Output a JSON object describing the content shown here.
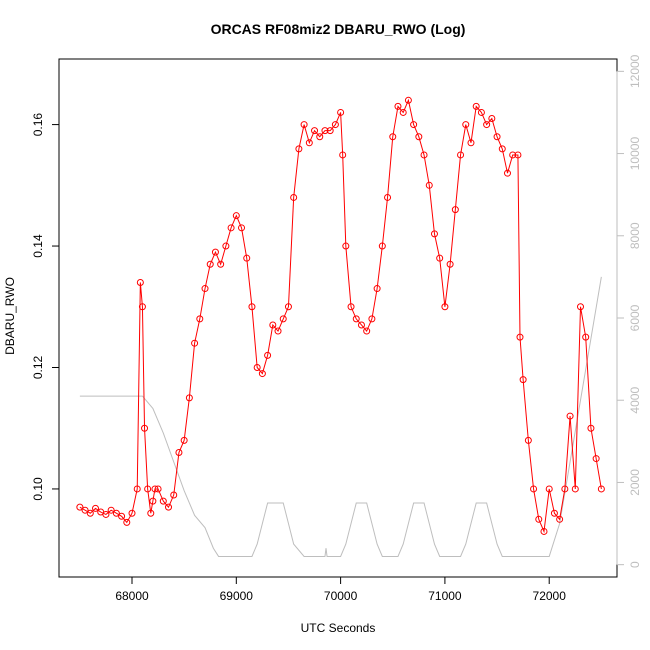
{
  "chart_data": {
    "type": "line",
    "title": "ORCAS RF08miz2 DBARU_RWO (Log)",
    "xlabel": "UTC Seconds",
    "ylabel": "DBARU_RWO",
    "xlim": [
      67300,
      72650
    ],
    "ylim": [
      0.0855,
      0.1708
    ],
    "y2lim": [
      -300,
      12300
    ],
    "x_ticks": [
      68000,
      69000,
      70000,
      71000,
      72000
    ],
    "y_ticks": [
      0.1,
      0.12,
      0.14,
      0.16
    ],
    "y2_ticks": [
      0,
      2000,
      4000,
      6000,
      8000,
      10000,
      12000
    ],
    "grid": false,
    "colors": {
      "primary": "#ff0000",
      "secondary": "#bebebe",
      "axis": "#000000"
    },
    "series": [
      {
        "role": "DBARU_RWO (left axis, red points with connecting line)",
        "x": [
          67500,
          67550,
          67600,
          67650,
          67700,
          67750,
          67800,
          67850,
          67900,
          67950,
          68000,
          68050,
          68080,
          68100,
          68120,
          68150,
          68180,
          68200,
          68220,
          68250,
          68300,
          68350,
          68400,
          68450,
          68500,
          68550,
          68600,
          68650,
          68700,
          68750,
          68800,
          68850,
          68900,
          68950,
          69000,
          69050,
          69100,
          69150,
          69200,
          69250,
          69300,
          69350,
          69400,
          69450,
          69500,
          69550,
          69600,
          69650,
          69700,
          69750,
          69800,
          69850,
          69900,
          69950,
          70000,
          70020,
          70050,
          70100,
          70150,
          70200,
          70250,
          70300,
          70350,
          70400,
          70450,
          70500,
          70550,
          70600,
          70650,
          70700,
          70750,
          70800,
          70850,
          70900,
          70950,
          71000,
          71050,
          71100,
          71150,
          71200,
          71250,
          71300,
          71350,
          71400,
          71450,
          71500,
          71550,
          71600,
          71650,
          71700,
          71720,
          71750,
          71800,
          71850,
          71900,
          71950,
          72000,
          72050,
          72100,
          72150,
          72200,
          72250,
          72300,
          72350,
          72400,
          72450,
          72500
        ],
        "values": [
          0.097,
          0.0965,
          0.096,
          0.0968,
          0.0962,
          0.0958,
          0.0965,
          0.096,
          0.0955,
          0.0945,
          0.096,
          0.1,
          0.134,
          0.13,
          0.11,
          0.1,
          0.096,
          0.098,
          0.1,
          0.1,
          0.098,
          0.097,
          0.099,
          0.106,
          0.108,
          0.115,
          0.124,
          0.128,
          0.133,
          0.137,
          0.139,
          0.137,
          0.14,
          0.143,
          0.145,
          0.143,
          0.138,
          0.13,
          0.12,
          0.119,
          0.122,
          0.127,
          0.126,
          0.128,
          0.13,
          0.148,
          0.156,
          0.16,
          0.157,
          0.159,
          0.158,
          0.159,
          0.159,
          0.16,
          0.162,
          0.155,
          0.14,
          0.13,
          0.128,
          0.127,
          0.126,
          0.128,
          0.133,
          0.14,
          0.148,
          0.158,
          0.163,
          0.162,
          0.164,
          0.16,
          0.158,
          0.155,
          0.15,
          0.142,
          0.138,
          0.13,
          0.137,
          0.146,
          0.155,
          0.16,
          0.157,
          0.163,
          0.162,
          0.16,
          0.161,
          0.158,
          0.156,
          0.152,
          0.155,
          0.155,
          0.125,
          0.118,
          0.108,
          0.1,
          0.095,
          0.093,
          0.1,
          0.096,
          0.095,
          0.1,
          0.112,
          0.1,
          0.13,
          0.125,
          0.11,
          0.105,
          0.1
        ]
      },
      {
        "role": "secondary (right axis, gray line)",
        "x": [
          67500,
          67800,
          68000,
          68100,
          68200,
          68300,
          68400,
          68500,
          68600,
          68700,
          68780,
          68830,
          68900,
          69000,
          69100,
          69150,
          69200,
          69250,
          69300,
          69400,
          69450,
          69500,
          69550,
          69650,
          69750,
          69850,
          69860,
          69870,
          69880,
          69900,
          69950,
          70000,
          70050,
          70100,
          70150,
          70200,
          70250,
          70300,
          70350,
          70400,
          70450,
          70500,
          70550,
          70600,
          70650,
          70700,
          70750,
          70800,
          70850,
          70900,
          70950,
          71000,
          71050,
          71100,
          71150,
          71200,
          71250,
          71300,
          71350,
          71400,
          71450,
          71500,
          71550,
          71600,
          71650,
          71700,
          71750,
          71800,
          71850,
          71900,
          71950,
          72000,
          72100,
          72200,
          72300,
          72400,
          72500
        ],
        "values": [
          4100,
          4100,
          4100,
          4100,
          3800,
          3200,
          2500,
          1800,
          1200,
          900,
          400,
          200,
          200,
          200,
          200,
          200,
          500,
          1000,
          1500,
          1500,
          1500,
          1000,
          500,
          200,
          200,
          200,
          400,
          200,
          200,
          200,
          200,
          200,
          500,
          1000,
          1500,
          1500,
          1500,
          1000,
          500,
          200,
          200,
          200,
          200,
          500,
          1000,
          1500,
          1500,
          1500,
          1000,
          500,
          200,
          200,
          200,
          200,
          200,
          500,
          1000,
          1500,
          1500,
          1500,
          1000,
          500,
          200,
          200,
          200,
          200,
          200,
          200,
          200,
          200,
          200,
          200,
          1000,
          2500,
          4000,
          5500,
          7000
        ]
      }
    ]
  }
}
